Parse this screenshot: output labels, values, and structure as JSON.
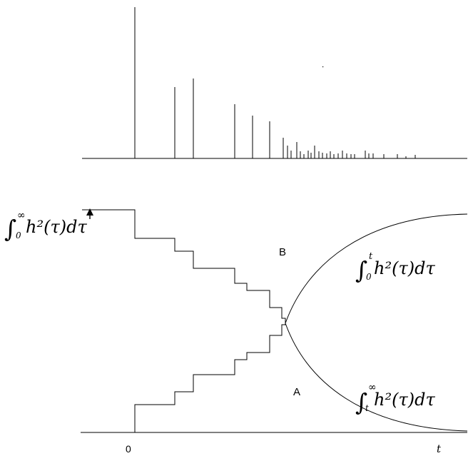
{
  "labels": {
    "region_b": "B",
    "region_a": "A",
    "origin": "0",
    "time_axis": "t"
  },
  "formulas": {
    "total_energy": {
      "lower": "0",
      "upper": "∞",
      "body": "h²(τ)dτ"
    },
    "energy_up_to_t": {
      "lower": "0",
      "upper": "t",
      "body": "h²(τ)dτ"
    },
    "energy_after_t": {
      "lower": "t",
      "upper": "∞",
      "body": "h²(τ)dτ"
    }
  },
  "colors": {
    "ink": "#000000",
    "background": "#ffffff"
  },
  "icons": {
    "total_marker": "arrow-up-icon"
  }
}
